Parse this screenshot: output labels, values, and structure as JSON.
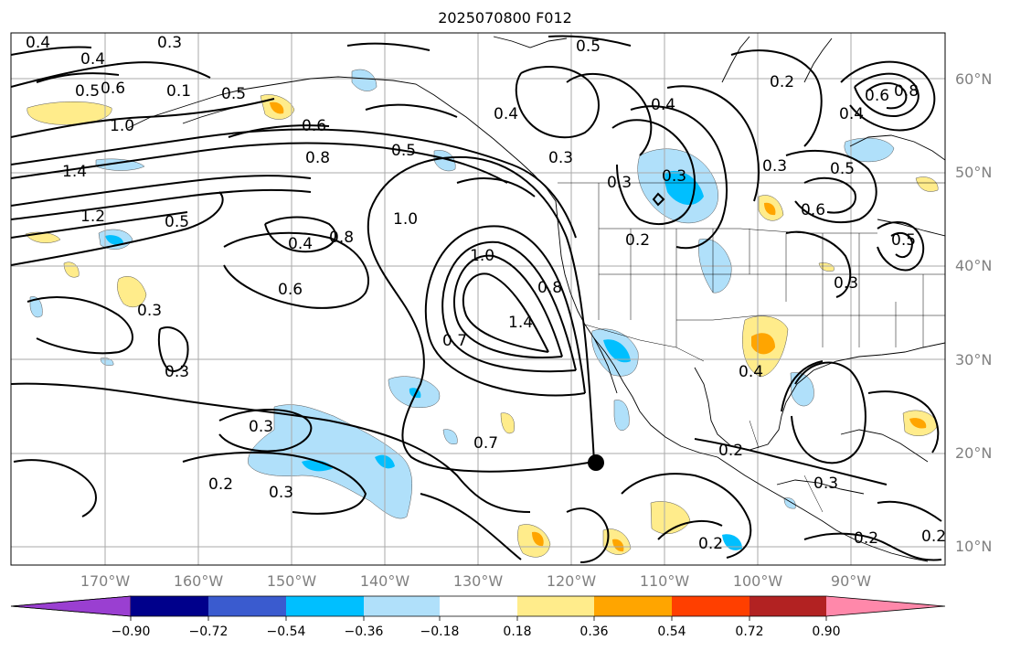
{
  "title": "2025070800 F012",
  "lon_labels": [
    "170°W",
    "160°W",
    "150°W",
    "140°W",
    "130°W",
    "120°W",
    "110°W",
    "100°W",
    "90°W"
  ],
  "lat_labels": [
    "60°N",
    "50°N",
    "40°N",
    "30°N",
    "20°N",
    "10°N"
  ],
  "colorbar": {
    "ticks": [
      "−0.90",
      "−0.72",
      "−0.54",
      "−0.36",
      "−0.18",
      "0.18",
      "0.36",
      "0.54",
      "0.72",
      "0.90"
    ],
    "colors": [
      "#9a3fd1",
      "#00008b",
      "#3a5bcf",
      "#00bfff",
      "#b0e0fa",
      "#ffffff",
      "#ffec8b",
      "#ffa500",
      "#ff3f00",
      "#b22222",
      "#ff88aa"
    ]
  },
  "contour_labels": [
    "0.4",
    "0.3",
    "0.4",
    "0.5",
    "0.6",
    "0.1",
    "0.5",
    "1.0",
    "1.4",
    "1.2",
    "0.5",
    "0.6",
    "0.8",
    "0.5",
    "0.4",
    "0.6",
    "0.3",
    "0.3",
    "0.3",
    "0.2",
    "0.3",
    "1.0",
    "1.0",
    "0.8",
    "0.4",
    "0.5",
    "0.3",
    "0.4",
    "0.3",
    "0.7",
    "1.4",
    "0.8",
    "0.7",
    "0.2",
    "0.3",
    "0.2",
    "0.4",
    "0.2",
    "0.6",
    "0.5",
    "0.3",
    "0.4",
    "0.2",
    "0.3",
    "0.3",
    "0.2",
    "0.5",
    "0.6",
    "0.2",
    "0.8"
  ]
}
